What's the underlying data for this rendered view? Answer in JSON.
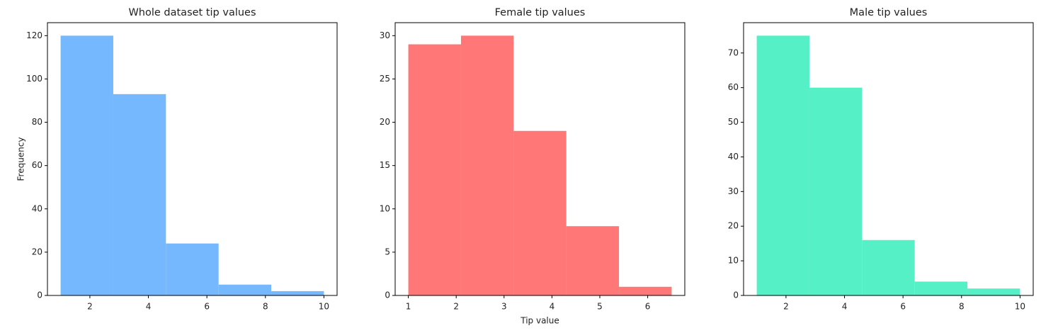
{
  "chart_data": [
    {
      "type": "histogram",
      "title": "Whole dataset tip values",
      "y_label": "Frequency",
      "bins": [
        1,
        2.8,
        4.6,
        6.4,
        8.2,
        10
      ],
      "values": [
        120,
        93,
        24,
        5,
        2
      ],
      "color": "#76b8fd",
      "xlim": [
        0.55,
        10.45
      ],
      "xticks": [
        2,
        4,
        6,
        8,
        10
      ],
      "ylim": [
        0,
        126
      ],
      "yticks": [
        0,
        20,
        40,
        60,
        80,
        100,
        120
      ]
    },
    {
      "type": "histogram",
      "title": "Female tip values",
      "x_label": "Tip value",
      "bins": [
        1,
        2.1,
        3.2,
        4.3,
        5.4,
        6.5
      ],
      "values": [
        29,
        30,
        19,
        8,
        1
      ],
      "color": "#ff7777",
      "xlim": [
        0.725,
        6.775
      ],
      "xticks": [
        1,
        2,
        3,
        4,
        5,
        6
      ],
      "ylim": [
        0,
        31.5
      ],
      "yticks": [
        0,
        5,
        10,
        15,
        20,
        25,
        30
      ]
    },
    {
      "type": "histogram",
      "title": "Male tip values",
      "bins": [
        1,
        2.8,
        4.6,
        6.4,
        8.2,
        10
      ],
      "values": [
        75,
        60,
        16,
        4,
        2
      ],
      "color": "#55f0c6",
      "xlim": [
        0.55,
        10.45
      ],
      "xticks": [
        2,
        4,
        6,
        8,
        10
      ],
      "ylim": [
        0,
        78.75
      ],
      "yticks": [
        0,
        10,
        20,
        30,
        40,
        50,
        60,
        70
      ]
    }
  ]
}
